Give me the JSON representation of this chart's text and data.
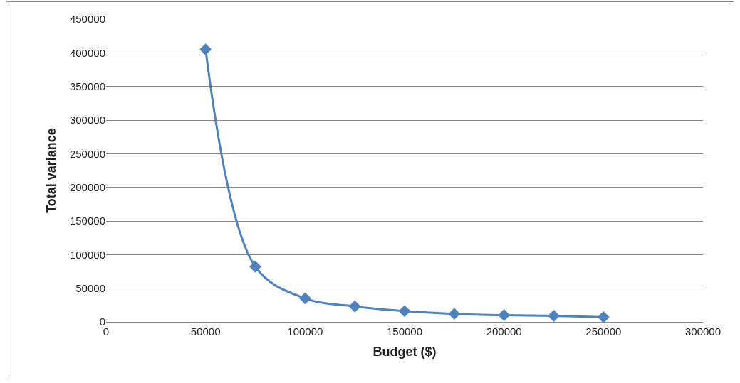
{
  "chart_data": {
    "type": "line",
    "xlabel": "Budget ($)",
    "ylabel": "Total variance",
    "x": [
      50000,
      75000,
      100000,
      125000,
      150000,
      175000,
      200000,
      225000,
      250000
    ],
    "series": [
      {
        "color": "#4f81bd",
        "values": [
          405000,
          82000,
          35000,
          23000,
          16000,
          12000,
          10000,
          9000,
          7000
        ]
      }
    ],
    "xlim": [
      0,
      300000
    ],
    "xticks": [
      0,
      50000,
      100000,
      150000,
      200000,
      250000,
      300000
    ],
    "ylim": [
      0,
      450000
    ],
    "yticks": [
      0,
      50000,
      100000,
      150000,
      200000,
      250000,
      300000,
      350000,
      400000,
      450000
    ],
    "grid": "y",
    "legend": false,
    "marker": "diamond",
    "line_style": "solid"
  }
}
